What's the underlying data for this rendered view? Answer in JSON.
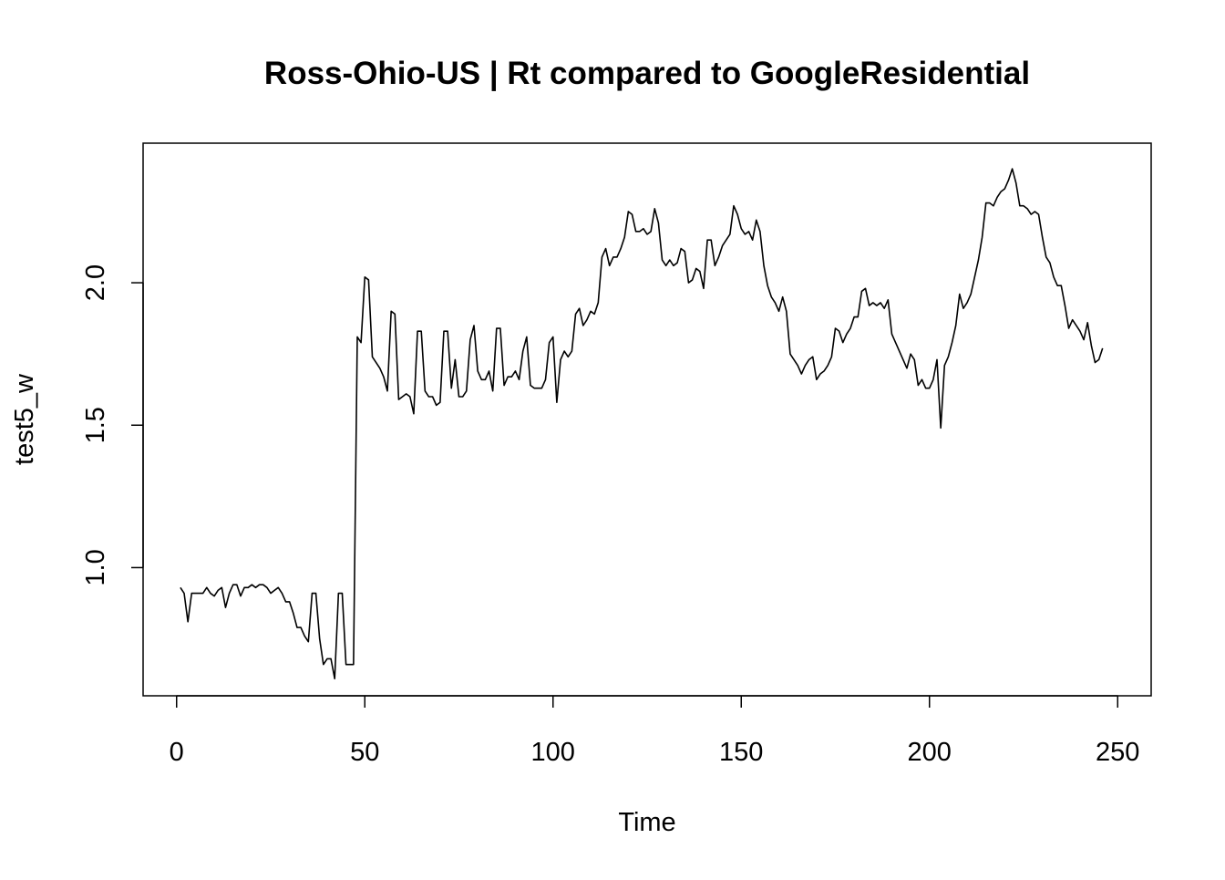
{
  "chart_data": {
    "type": "line",
    "title": "Ross-Ohio-US | Rt compared to GoogleResidential",
    "xlabel": "Time",
    "ylabel": "test5_w",
    "xlim": [
      -8.9,
      258.9
    ],
    "ylim": [
      0.55,
      2.49
    ],
    "x_ticks": [
      0,
      50,
      100,
      150,
      200,
      250
    ],
    "y_ticks": [
      1.0,
      1.5,
      2.0
    ],
    "x_tick_labels": [
      "0",
      "50",
      "100",
      "150",
      "200",
      "250"
    ],
    "y_tick_labels": [
      "1.0",
      "1.5",
      "2.0"
    ],
    "grid": false,
    "legend": "none",
    "line_color": "#000000",
    "series": [
      {
        "x_start": 1,
        "values": [
          0.93,
          0.91,
          0.81,
          0.91,
          0.91,
          0.91,
          0.91,
          0.93,
          0.91,
          0.9,
          0.92,
          0.93,
          0.86,
          0.91,
          0.94,
          0.94,
          0.9,
          0.93,
          0.93,
          0.94,
          0.93,
          0.94,
          0.94,
          0.93,
          0.91,
          0.92,
          0.93,
          0.91,
          0.88,
          0.88,
          0.84,
          0.79,
          0.79,
          0.76,
          0.74,
          0.91,
          0.91,
          0.75,
          0.66,
          0.68,
          0.68,
          0.61,
          0.91,
          0.91,
          0.66,
          0.66,
          0.66,
          1.81,
          1.79,
          2.02,
          2.01,
          1.74,
          1.72,
          1.7,
          1.67,
          1.62,
          1.9,
          1.89,
          1.59,
          1.6,
          1.61,
          1.6,
          1.54,
          1.83,
          1.83,
          1.62,
          1.6,
          1.6,
          1.57,
          1.58,
          1.83,
          1.83,
          1.63,
          1.73,
          1.6,
          1.6,
          1.62,
          1.8,
          1.85,
          1.69,
          1.66,
          1.66,
          1.69,
          1.62,
          1.84,
          1.84,
          1.64,
          1.67,
          1.67,
          1.69,
          1.66,
          1.76,
          1.81,
          1.64,
          1.63,
          1.63,
          1.63,
          1.66,
          1.79,
          1.81,
          1.58,
          1.73,
          1.76,
          1.74,
          1.76,
          1.89,
          1.91,
          1.85,
          1.87,
          1.9,
          1.89,
          1.93,
          2.09,
          2.12,
          2.06,
          2.09,
          2.09,
          2.12,
          2.16,
          2.25,
          2.24,
          2.18,
          2.18,
          2.19,
          2.17,
          2.18,
          2.26,
          2.21,
          2.08,
          2.06,
          2.08,
          2.06,
          2.07,
          2.12,
          2.11,
          2.0,
          2.01,
          2.05,
          2.04,
          1.98,
          2.15,
          2.15,
          2.06,
          2.09,
          2.13,
          2.15,
          2.17,
          2.27,
          2.24,
          2.19,
          2.17,
          2.18,
          2.15,
          2.22,
          2.18,
          2.06,
          1.99,
          1.95,
          1.93,
          1.9,
          1.95,
          1.9,
          1.75,
          1.73,
          1.71,
          1.68,
          1.71,
          1.73,
          1.74,
          1.66,
          1.68,
          1.69,
          1.71,
          1.74,
          1.84,
          1.83,
          1.79,
          1.82,
          1.84,
          1.88,
          1.88,
          1.97,
          1.98,
          1.92,
          1.93,
          1.92,
          1.93,
          1.91,
          1.94,
          1.82,
          1.79,
          1.76,
          1.73,
          1.7,
          1.75,
          1.73,
          1.64,
          1.66,
          1.63,
          1.63,
          1.66,
          1.73,
          1.49,
          1.71,
          1.74,
          1.79,
          1.85,
          1.96,
          1.91,
          1.93,
          1.96,
          2.02,
          2.08,
          2.16,
          2.28,
          2.28,
          2.27,
          2.3,
          2.32,
          2.33,
          2.36,
          2.4,
          2.35,
          2.27,
          2.27,
          2.26,
          2.24,
          2.25,
          2.24,
          2.16,
          2.09,
          2.07,
          2.02,
          1.99,
          1.99,
          1.92,
          1.84,
          1.87,
          1.85,
          1.83,
          1.8,
          1.86,
          1.78,
          1.72,
          1.73,
          1.77
        ]
      }
    ]
  }
}
